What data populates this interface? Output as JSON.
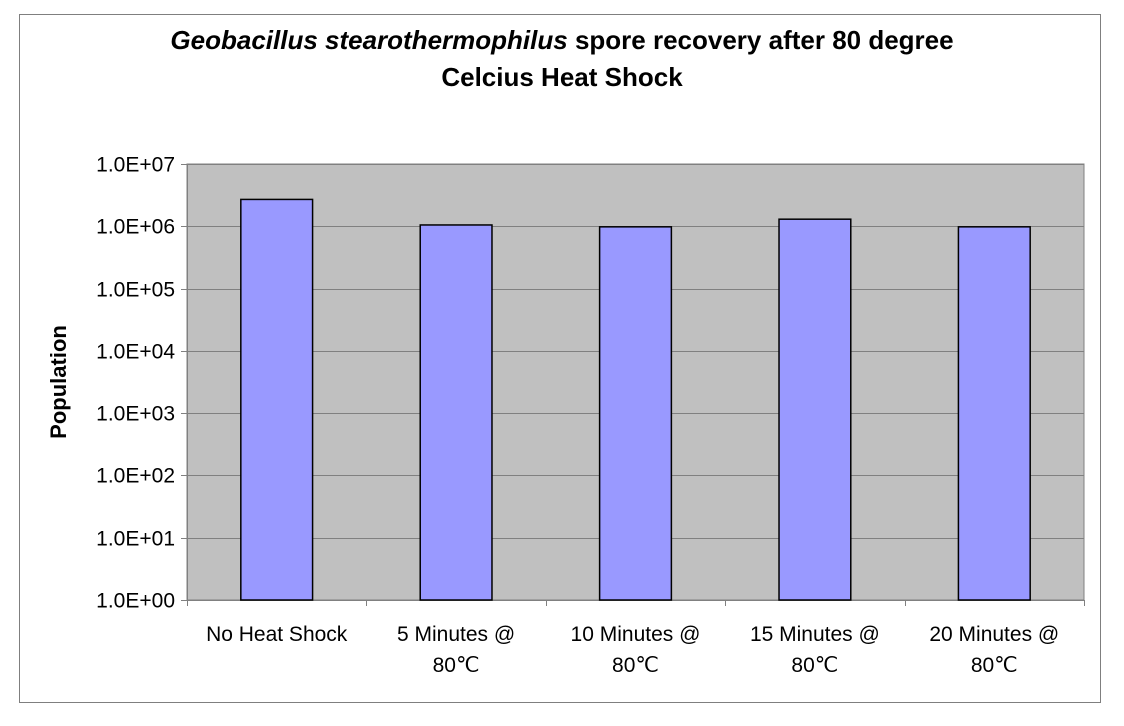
{
  "chart_data": {
    "type": "bar",
    "title_italic": "Geobacillus stearothermophilus",
    "title_rest": " spore recovery after 80 degree",
    "title_line2": "Celcius Heat Shock",
    "xlabel": "",
    "ylabel": "Population",
    "yscale": "log",
    "ylim": [
      1,
      10000000
    ],
    "y_ticks": [
      "1.0E+00",
      "1.0E+01",
      "1.0E+02",
      "1.0E+03",
      "1.0E+04",
      "1.0E+05",
      "1.0E+06",
      "1.0E+07"
    ],
    "categories": [
      [
        "No Heat Shock"
      ],
      [
        "5 Minutes @",
        "80℃"
      ],
      [
        "10 Minutes @",
        "80℃"
      ],
      [
        "15 Minutes @",
        "80℃"
      ],
      [
        "20 Minutes @",
        "80℃"
      ]
    ],
    "values": [
      2700000,
      1050000,
      980000,
      1300000,
      980000
    ],
    "grid": true,
    "legend": "none",
    "colors": {
      "bar_fill": "#9999ff",
      "bar_stroke": "#000000",
      "plot_bg": "#c0c0c0",
      "grid": "#808080",
      "axis": "#808080"
    }
  }
}
